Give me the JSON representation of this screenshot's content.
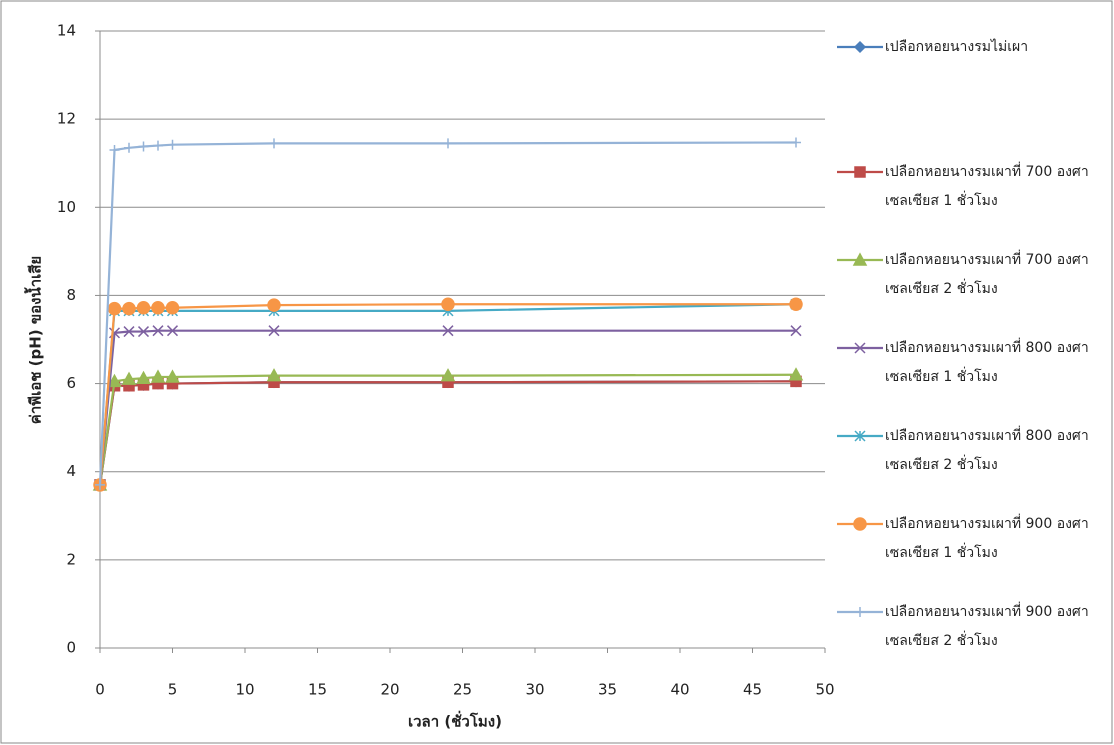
{
  "chart_data": {
    "type": "line",
    "x_label": "เวลา (ชั่วโมง)",
    "y_label": "ค่าพีเอช (pH) ของน้ำเสีย",
    "x": [
      0,
      1,
      2,
      3,
      4,
      5,
      12,
      24,
      48
    ],
    "xlim": [
      0,
      50
    ],
    "xticks": [
      0,
      5,
      10,
      15,
      20,
      25,
      30,
      35,
      40,
      45,
      50
    ],
    "ylim": [
      0,
      14
    ],
    "yticks": [
      0,
      2,
      4,
      6,
      8,
      10,
      12,
      14
    ],
    "grid": true,
    "legend": "right",
    "series": [
      {
        "name": "เปลือกหอยนางรมไม่เผา",
        "color": "#4a7ebb",
        "marker": "diamond",
        "values": [
          3.7,
          5.95,
          5.95,
          5.97,
          6.0,
          6.0,
          6.03,
          6.03,
          6.05
        ]
      },
      {
        "name": "เปลือกหอยนางรมเผาที่ 700 องศาเซลเซียส 1 ชั่วโมง",
        "color": "#be4b48",
        "marker": "square",
        "values": [
          3.7,
          5.95,
          5.95,
          5.97,
          6.0,
          6.0,
          6.03,
          6.03,
          6.05
        ]
      },
      {
        "name": "เปลือกหอยนางรมเผาที่ 700 องศาเซลเซียส 2 ชั่วโมง",
        "color": "#98b954",
        "marker": "triangle",
        "values": [
          3.7,
          6.05,
          6.1,
          6.12,
          6.15,
          6.15,
          6.18,
          6.18,
          6.2
        ]
      },
      {
        "name": "เปลือกหอยนางรมเผาที่ 800 องศาเซลเซียส 1 ชั่วโมง",
        "color": "#7d60a0",
        "marker": "x",
        "values": [
          3.7,
          7.15,
          7.18,
          7.18,
          7.2,
          7.2,
          7.2,
          7.2,
          7.2
        ]
      },
      {
        "name": "เปลือกหอยนางรมเผาที่ 800 องศาเซลเซียส 2 ชั่วโมง",
        "color": "#46aac5",
        "marker": "star",
        "values": [
          3.7,
          7.65,
          7.65,
          7.65,
          7.65,
          7.65,
          7.65,
          7.65,
          7.8
        ]
      },
      {
        "name": "เปลือกหอยนางรมเผาที่ 900 องศาเซลเซียส 1 ชั่วโมง",
        "color": "#f79646",
        "marker": "circle",
        "values": [
          3.7,
          7.7,
          7.7,
          7.72,
          7.72,
          7.72,
          7.78,
          7.8,
          7.8
        ]
      },
      {
        "name": "เปลือกหอยนางรมเผาที่ 900 องศาเซลเซียส 2 ชั่วโมง",
        "color": "#95b3d7",
        "marker": "plus",
        "values": [
          3.7,
          11.3,
          11.35,
          11.38,
          11.4,
          11.42,
          11.45,
          11.45,
          11.47
        ]
      }
    ]
  }
}
